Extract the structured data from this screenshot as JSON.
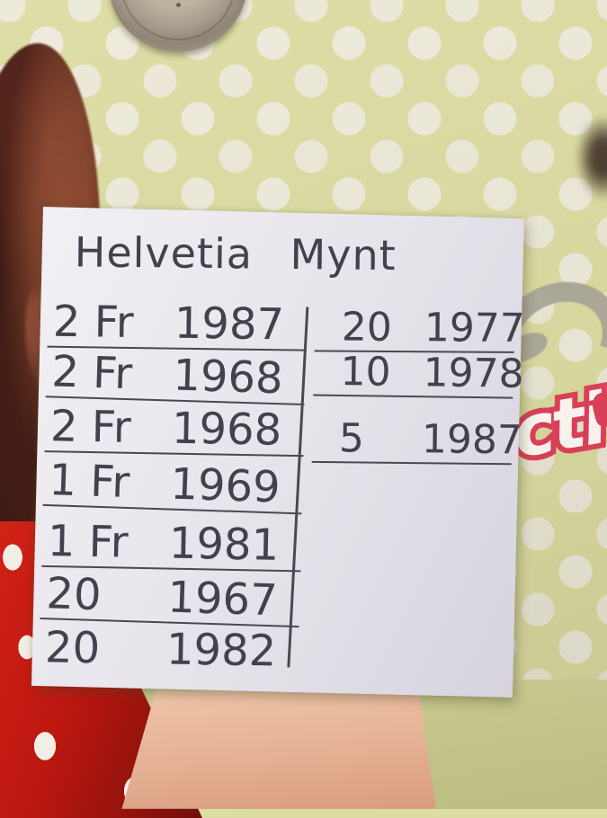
{
  "note": {
    "title": "Helvetia Mynt",
    "left_column": {
      "rows": [
        {
          "amount": "2 Fr",
          "year": "1987"
        },
        {
          "amount": "2 Fr",
          "year": "1968"
        },
        {
          "amount": "2 Fr",
          "year": "1968"
        },
        {
          "amount": "1 Fr",
          "year": "1969"
        },
        {
          "amount": "1 Fr",
          "year": "1981"
        },
        {
          "amount": "20",
          "year": "1967"
        },
        {
          "amount": "20",
          "year": "1982"
        }
      ]
    },
    "right_column": {
      "rows": [
        {
          "amount": "20",
          "year": "1977"
        },
        {
          "amount": "10",
          "year": "1978"
        },
        {
          "amount": "5",
          "year": "1987"
        }
      ]
    }
  },
  "background": {
    "text_fragment": "cti",
    "colors": {
      "wallpaper": "#dcdda3",
      "wallpaper_dots": "#eeebdc",
      "paper": "#e9e7ec",
      "ink": "#43414b",
      "fragment_fill": "#f7f3ec",
      "fragment_outline": "#d94057",
      "dress_red": "#c41d15",
      "hair_brown": "#5c2a20",
      "skin": "#e5b298",
      "coin_silver": "#a89f8f"
    }
  }
}
